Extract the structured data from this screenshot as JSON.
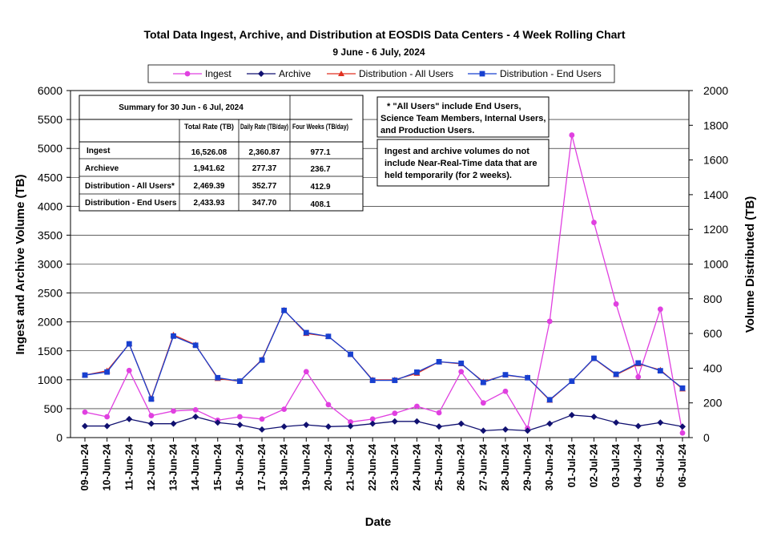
{
  "chart_data": {
    "type": "line",
    "title": "Total Data Ingest, Archive, and  Distribution at EOSDIS Data Centers - 4 Week Rolling Chart",
    "subtitle": "9  June   - 6  July,  2024",
    "xlabel": "Date",
    "ylabel_left": "Ingest and Archive Volume (TB)",
    "ylabel_right": "Volume Distributed (TB)",
    "ylim_left": [
      0,
      6000
    ],
    "ylim_right": [
      0,
      2000
    ],
    "yticks_left": [
      "0",
      "500",
      "1000",
      "1500",
      "2000",
      "2500",
      "3000",
      "3500",
      "4000",
      "4500",
      "5000",
      "5500",
      "6000"
    ],
    "yticks_right": [
      "0",
      "200",
      "400",
      "600",
      "800",
      "1000",
      "1200",
      "1400",
      "1600",
      "1800",
      "2000"
    ],
    "grid": "horizontal",
    "legend_position": "top",
    "categories": [
      "09-Jun-24",
      "10-Jun-24",
      "11-Jun-24",
      "12-Jun-24",
      "13-Jun-24",
      "14-Jun-24",
      "15-Jun-24",
      "16-Jun-24",
      "17-Jun-24",
      "18-Jun-24",
      "19-Jun-24",
      "20-Jun-24",
      "21-Jun-24",
      "22-Jun-24",
      "23-Jun-24",
      "24-Jun-24",
      "25-Jun-24",
      "26-Jun-24",
      "27-Jun-24",
      "28-Jun-24",
      "29-Jun-24",
      "30-Jun-24",
      "01-Jul-24",
      "02-Jul-24",
      "03-Jul-24",
      "04-Jul-24",
      "05-Jul-24",
      "06-Jul-24"
    ],
    "series": [
      {
        "name": "Ingest",
        "axis": "left",
        "color": "#e040e0",
        "marker": "circle",
        "values": [
          440,
          360,
          1160,
          380,
          460,
          480,
          300,
          360,
          320,
          490,
          1140,
          570,
          270,
          320,
          420,
          540,
          430,
          1140,
          600,
          800,
          160,
          2010,
          5230,
          3720,
          2310,
          1050,
          2220,
          80
        ]
      },
      {
        "name": "Archive",
        "axis": "left",
        "color": "#101070",
        "marker": "diamond",
        "values": [
          200,
          200,
          320,
          240,
          240,
          360,
          260,
          220,
          140,
          190,
          220,
          190,
          200,
          240,
          280,
          280,
          190,
          240,
          120,
          140,
          120,
          240,
          390,
          360,
          260,
          200,
          260,
          190
        ]
      },
      {
        "name": "Distribution - All Users",
        "axis": "right",
        "color": "#e03020",
        "marker": "triangle",
        "values": [
          360,
          385,
          540,
          225,
          592,
          535,
          340,
          325,
          450,
          735,
          600,
          583,
          480,
          333,
          333,
          370,
          437,
          425,
          322,
          360,
          345,
          215,
          325,
          455,
          362,
          425,
          390,
          280
        ]
      },
      {
        "name": "Distribution - End Users",
        "axis": "right",
        "color": "#1840d0",
        "marker": "square",
        "values": [
          360,
          378,
          540,
          222,
          585,
          532,
          345,
          325,
          447,
          733,
          605,
          583,
          480,
          330,
          330,
          377,
          437,
          428,
          318,
          362,
          345,
          218,
          325,
          457,
          365,
          430,
          385,
          285
        ]
      }
    ],
    "summary_table": {
      "title": "Summary  for  30 Jun  - 6 Jul, 2024",
      "headers": [
        "Total Rate (TB)",
        "Daily Rate (TB/day)",
        "Four Weeks (TB/day)"
      ],
      "rows": [
        {
          "label": "Ingest",
          "values": [
            "16,526.08",
            "2,360.87",
            "977.1"
          ]
        },
        {
          "label": "Archieve",
          "values": [
            "1,941.62",
            "277.37",
            "236.7"
          ]
        },
        {
          "label": "Distribution - All Users*",
          "values": [
            "2,469.39",
            "352.77",
            "412.9"
          ]
        },
        {
          "label": "Distribution - End Users",
          "values": [
            "2,433.93",
            "347.70",
            "408.1"
          ]
        }
      ]
    },
    "annotations": [
      [
        "* \"All Users\" include End Users,",
        "Science Team Members,  Internal Users,",
        "and Production Users."
      ],
      [
        "Ingest and archive volumes do not",
        "include Near-Real-Time data that are",
        "held temporarily (for 2 weeks)."
      ]
    ]
  }
}
